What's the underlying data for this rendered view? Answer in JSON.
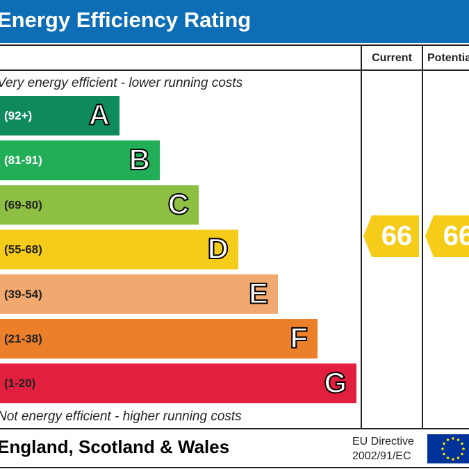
{
  "header": {
    "title": "Energy Efficiency Rating"
  },
  "columns": [
    "Current",
    "Potential"
  ],
  "top_note": "Very energy efficient - lower running costs",
  "bottom_note": "Not energy efficient - higher running costs",
  "bands": [
    {
      "range": "(92+)",
      "letter": "A",
      "color": "#0f8a5d"
    },
    {
      "range": "(81-91)",
      "letter": "B",
      "color": "#22ad57"
    },
    {
      "range": "(69-80)",
      "letter": "C",
      "color": "#8dbf42"
    },
    {
      "range": "(55-68)",
      "letter": "D",
      "color": "#f6cc1b"
    },
    {
      "range": "(39-54)",
      "letter": "E",
      "color": "#f2a96f"
    },
    {
      "range": "(21-38)",
      "letter": "F",
      "color": "#ec7f2a"
    },
    {
      "range": "(1-20)",
      "letter": "G",
      "color": "#e21f3e"
    }
  ],
  "ratings": {
    "current": "66",
    "potential": "66",
    "color": "#f6cc1b"
  },
  "footer": {
    "region": "England, Scotland & Wales",
    "directive": [
      "EU Directive",
      "2002/91/EC"
    ]
  }
}
